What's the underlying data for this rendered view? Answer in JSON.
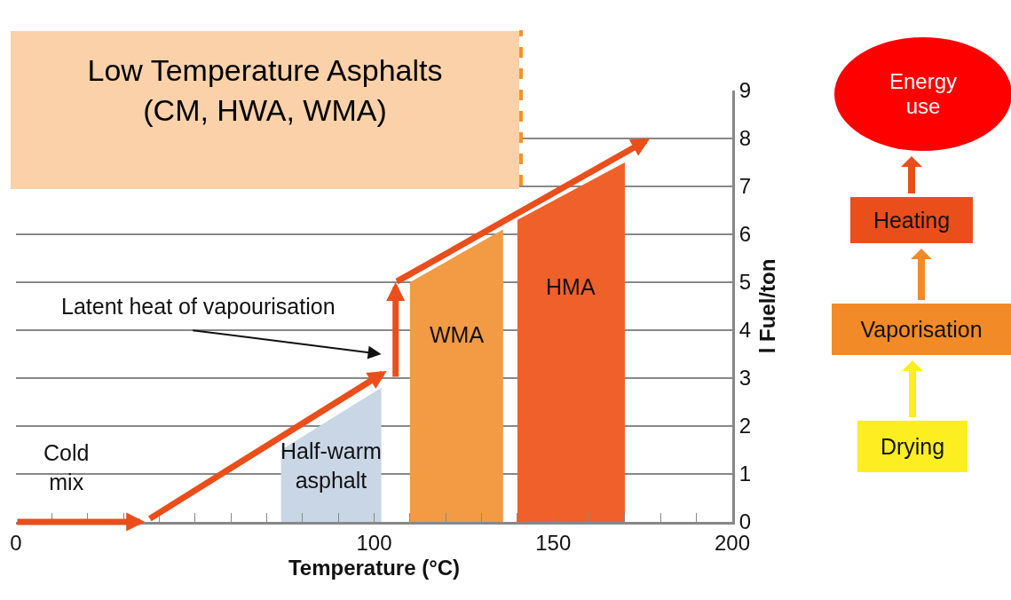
{
  "chart_data": {
    "type": "area",
    "title": "Low Temperature Asphalts\n(CM, HWA, WMA)",
    "xlabel": "Temperature (°C)",
    "ylabel": "l Fuel/ton",
    "series": [
      {
        "name": "Half-warm asphalt",
        "color": "#c9d6e6",
        "x": [
          74,
          102
        ],
        "values": [
          1.5,
          2.8
        ]
      },
      {
        "name": "WMA",
        "color": "#f39a45",
        "x": [
          110,
          136
        ],
        "values": [
          5,
          6.1
        ]
      },
      {
        "name": "HMA",
        "color": "#f0602a",
        "x": [
          140,
          170
        ],
        "values": [
          6.3,
          7.5
        ]
      }
    ],
    "annotations": [
      "Latent heat of vapourisation",
      "Cold mix",
      "Energy use",
      "Heating",
      "Vaporisation",
      "Drying"
    ],
    "ref_lines": [
      {
        "axis": "x",
        "value": 141,
        "color": "#f39325",
        "line_style": "dashed"
      }
    ],
    "xlim": [
      0,
      200
    ],
    "xticks": [
      0,
      {
        "value": 10,
        "label": null
      },
      {
        "value": 20,
        "label": null
      },
      {
        "value": 30,
        "label": null
      },
      {
        "value": 40,
        "label": null
      },
      {
        "value": 50,
        "label": null
      },
      {
        "value": 60,
        "label": null
      },
      {
        "value": 70,
        "label": null
      },
      {
        "value": 80,
        "label": null
      },
      {
        "value": 90,
        "label": null
      },
      100,
      {
        "value": 110,
        "label": null
      },
      {
        "value": 120,
        "label": null
      },
      {
        "value": 130,
        "label": null
      },
      {
        "value": 140,
        "label": null
      },
      150,
      {
        "value": 160,
        "label": null
      },
      {
        "value": 170,
        "label": null
      },
      {
        "value": 180,
        "label": null
      },
      {
        "value": 190,
        "label": null
      },
      200
    ],
    "ylim": [
      0,
      9
    ],
    "yticks": [
      0,
      1,
      2,
      3,
      4,
      5,
      6,
      7,
      8,
      9
    ],
    "grid": "y",
    "legend": false
  }
}
